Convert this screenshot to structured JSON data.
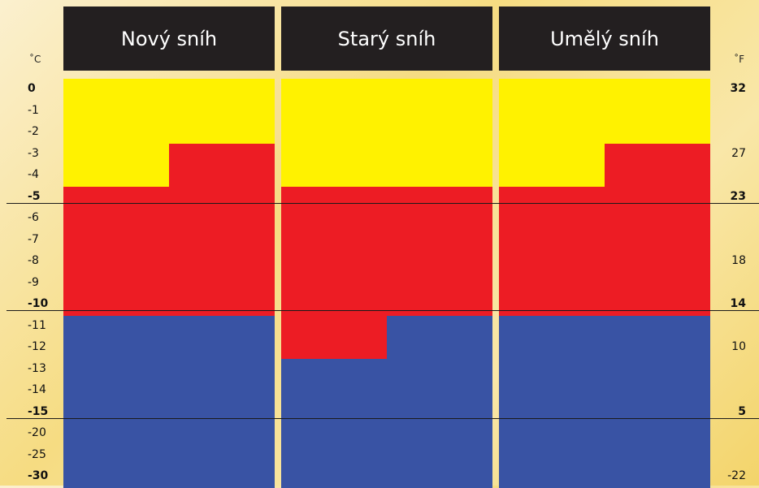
{
  "chart_data": {
    "type": "heatmap",
    "columns": [
      "Nový sníh",
      "Starý sníh",
      "Umělý sníh"
    ],
    "left_unit": "˚C",
    "right_unit": "˚F",
    "left_ticks": [
      {
        "label": "0",
        "bold": true
      },
      {
        "label": "-1",
        "bold": false
      },
      {
        "label": "-2",
        "bold": false
      },
      {
        "label": "-3",
        "bold": false
      },
      {
        "label": "-4",
        "bold": false
      },
      {
        "label": "-5",
        "bold": true
      },
      {
        "label": "-6",
        "bold": false
      },
      {
        "label": "-7",
        "bold": false
      },
      {
        "label": "-8",
        "bold": false
      },
      {
        "label": "-9",
        "bold": false
      },
      {
        "label": "-10",
        "bold": true
      },
      {
        "label": "-11",
        "bold": false
      },
      {
        "label": "-12",
        "bold": false
      },
      {
        "label": "-13",
        "bold": false
      },
      {
        "label": "-14",
        "bold": false
      },
      {
        "label": "-15",
        "bold": true
      },
      {
        "label": "-20",
        "bold": false
      },
      {
        "label": "-25",
        "bold": false
      },
      {
        "label": "-30",
        "bold": true
      }
    ],
    "right_ticks": [
      {
        "label": "32",
        "bold": true,
        "row": 0
      },
      {
        "label": "27",
        "bold": false,
        "row": 3
      },
      {
        "label": "23",
        "bold": true,
        "row": 5
      },
      {
        "label": "18",
        "bold": false,
        "row": 8
      },
      {
        "label": "14",
        "bold": true,
        "row": 10
      },
      {
        "label": "10",
        "bold": false,
        "row": 12
      },
      {
        "label": "5",
        "bold": true,
        "row": 15
      },
      {
        "label": "-22",
        "bold": false,
        "row": 18
      }
    ],
    "divider_after_rows": [
      5,
      10,
      15
    ],
    "colors": {
      "yellow": "#fff200",
      "red": "#ed1c24",
      "blue": "#3953a4"
    },
    "blocks": [
      [
        {
          "color": "yellow",
          "left_half": [
            0,
            5
          ],
          "right_half": [
            0,
            3
          ]
        },
        {
          "color": "red",
          "left_half": [
            5,
            11
          ],
          "right_half": [
            3,
            11
          ]
        },
        {
          "color": "blue",
          "left_half": [
            11,
            19
          ],
          "right_half": [
            11,
            19
          ]
        }
      ],
      [
        {
          "color": "yellow",
          "left_half": [
            0,
            5
          ],
          "right_half": [
            0,
            5
          ]
        },
        {
          "color": "red",
          "left_half": [
            5,
            13
          ],
          "right_half": [
            5,
            11
          ]
        },
        {
          "color": "blue",
          "left_half": [
            13,
            19
          ],
          "right_half": [
            11,
            19
          ]
        }
      ],
      [
        {
          "color": "yellow",
          "left_half": [
            0,
            5
          ],
          "right_half": [
            0,
            3
          ]
        },
        {
          "color": "red",
          "left_half": [
            5,
            11
          ],
          "right_half": [
            3,
            11
          ]
        },
        {
          "color": "blue",
          "left_half": [
            11,
            19
          ],
          "right_half": [
            11,
            19
          ]
        }
      ]
    ]
  }
}
